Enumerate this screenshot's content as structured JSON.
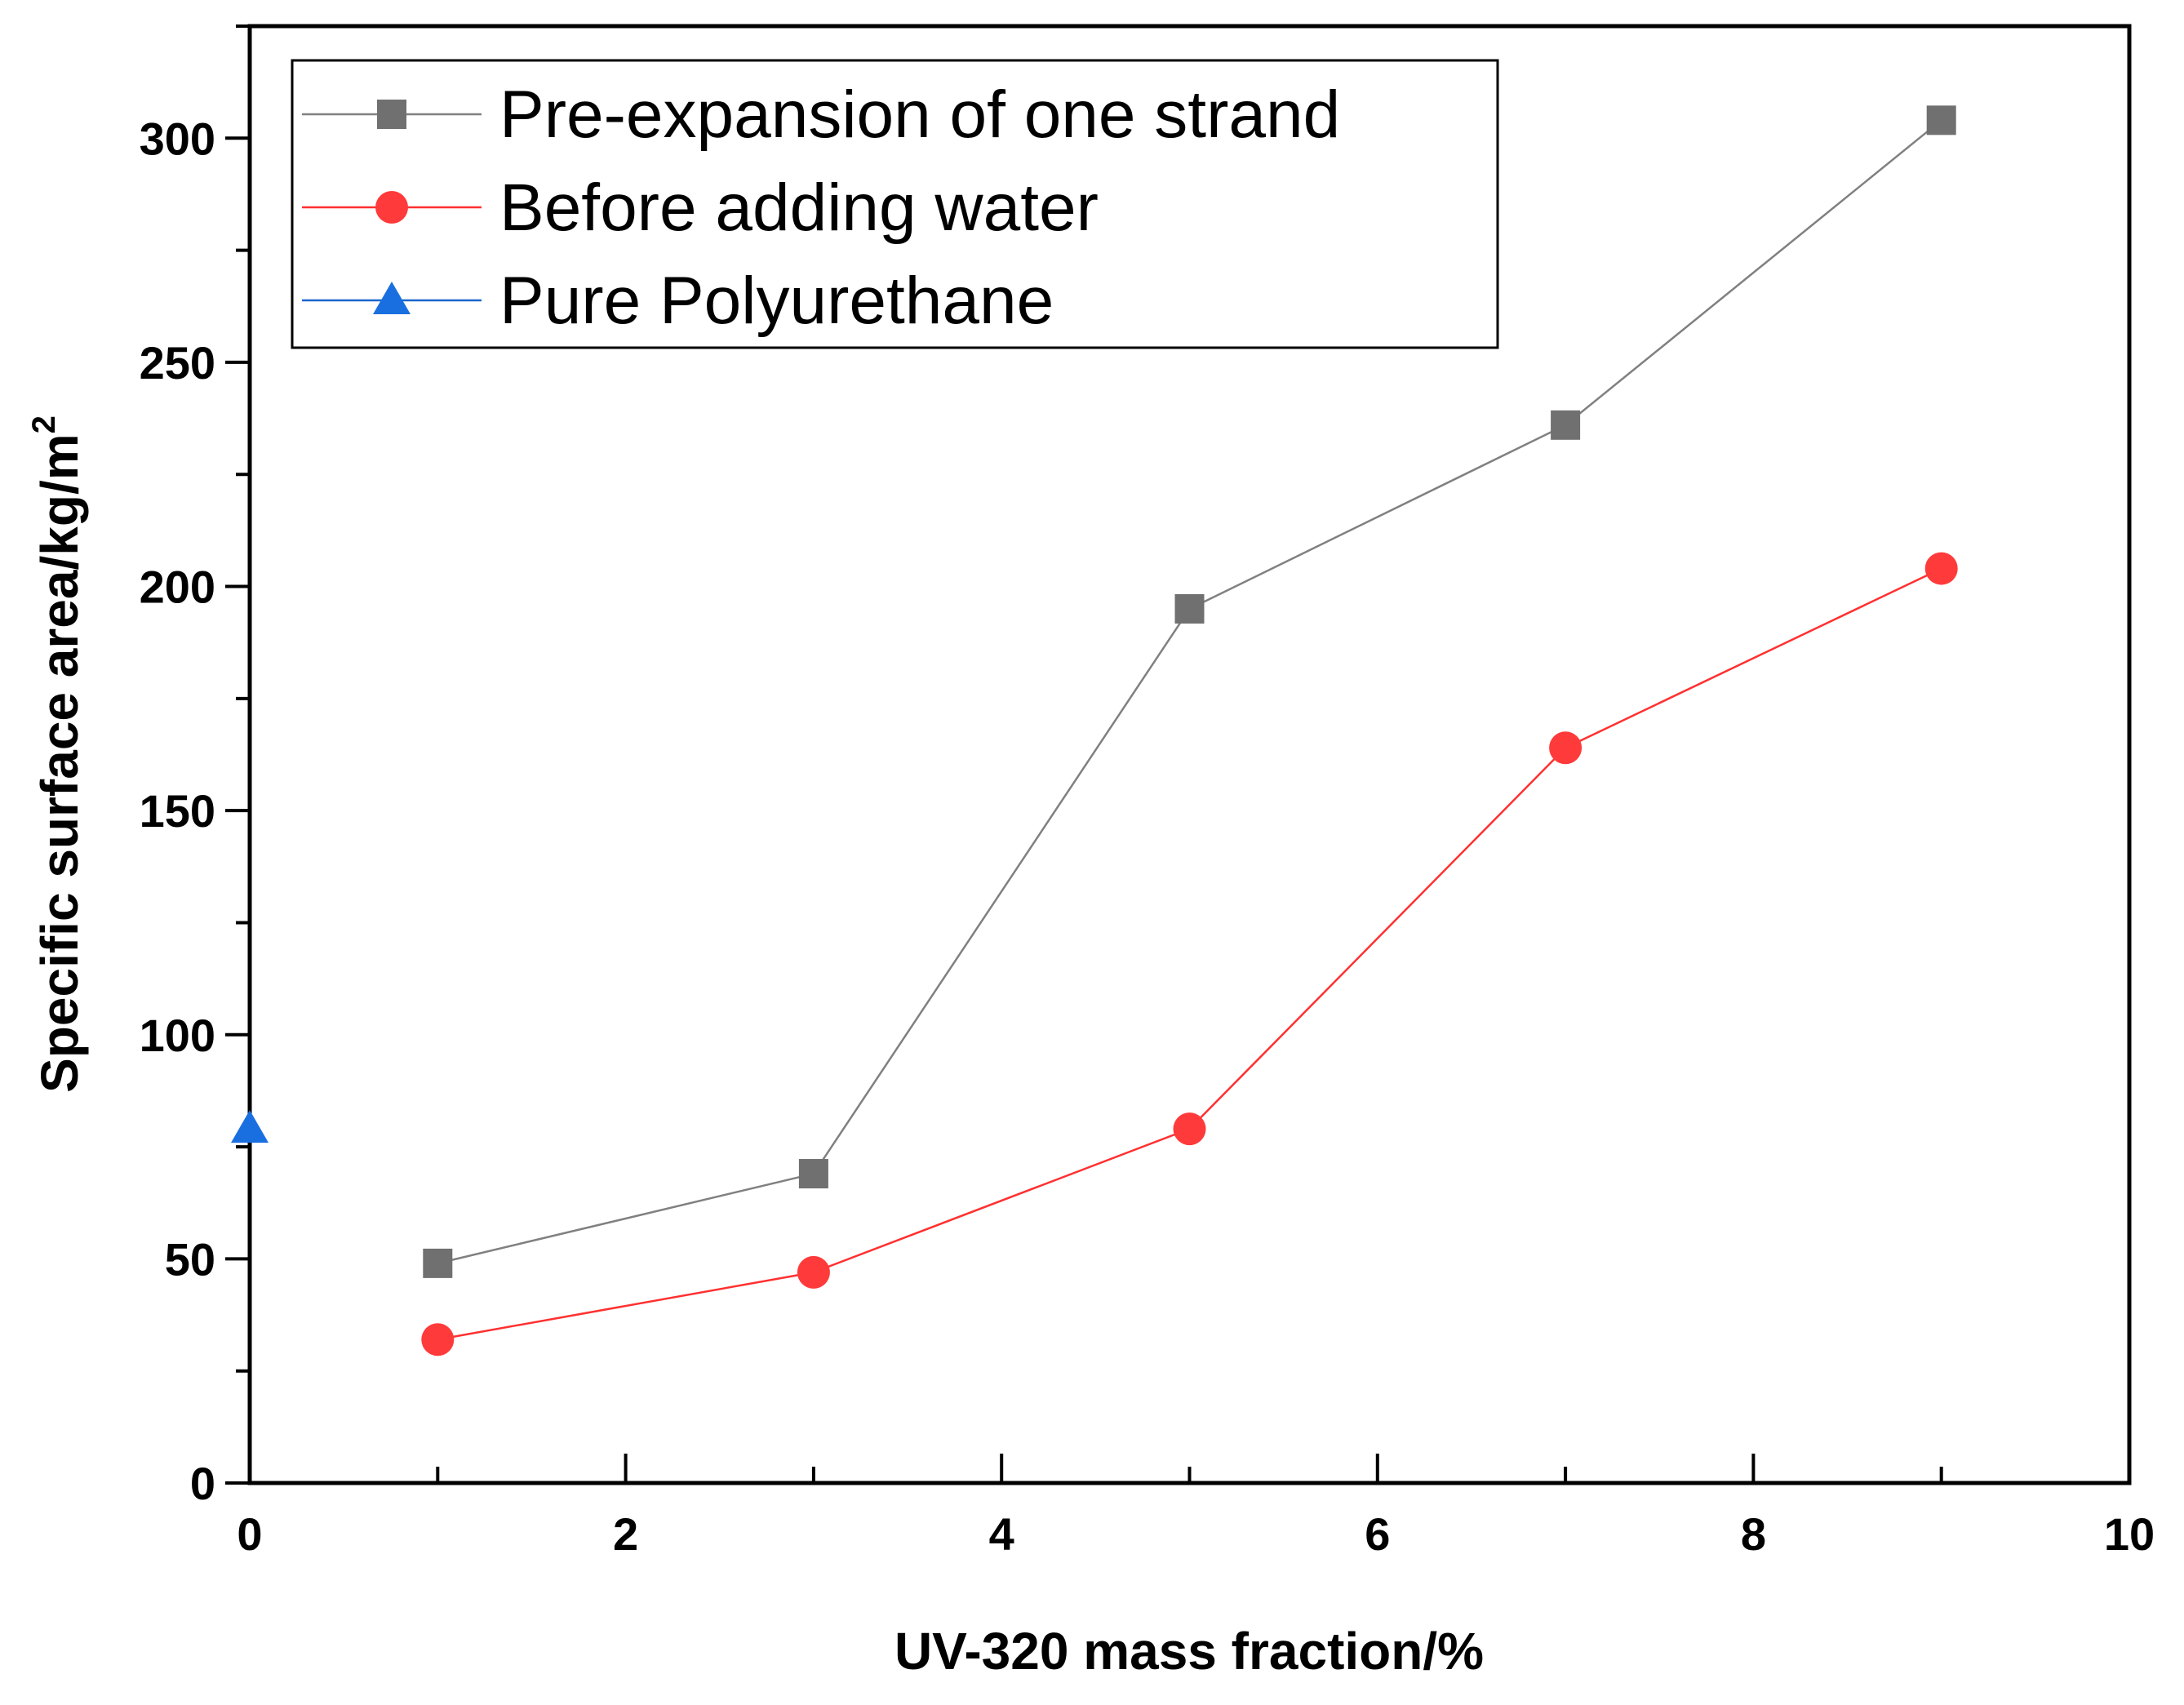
{
  "chart_data": {
    "type": "line",
    "title": "",
    "xlabel": "UV-320 mass fraction/%",
    "ylabel": "Specific surface area/kg/m",
    "ylabel_superscript": "2",
    "xlim": [
      0,
      10
    ],
    "ylim": [
      0,
      325
    ],
    "x_ticks": [
      0,
      2,
      4,
      6,
      8,
      10
    ],
    "x_tick_labels": [
      "0",
      "2",
      "4",
      "6",
      "8",
      "10"
    ],
    "y_ticks": [
      0,
      50,
      100,
      150,
      200,
      250,
      300
    ],
    "y_tick_labels": [
      "0",
      "50",
      "100",
      "150",
      "200",
      "250",
      "300"
    ],
    "grid": false,
    "legend_position": "top-left",
    "series": [
      {
        "name": "Pre-expansion of one strand",
        "marker": "square",
        "color": "#808080",
        "marker_color": "#707070",
        "x": [
          1,
          3,
          5,
          7,
          9
        ],
        "values": [
          49,
          69,
          195,
          236,
          304
        ]
      },
      {
        "name": "Before adding water",
        "marker": "circle",
        "color": "#ff3030",
        "marker_color": "#ff3a3a",
        "x": [
          1,
          3,
          5,
          7,
          9
        ],
        "values": [
          32,
          47,
          79,
          164,
          204
        ]
      },
      {
        "name": "Pure Polyurethane",
        "marker": "triangle",
        "color": "#1a66cc",
        "marker_color": "#1a6fe0",
        "x": [
          0
        ],
        "values": [
          79
        ]
      }
    ]
  }
}
